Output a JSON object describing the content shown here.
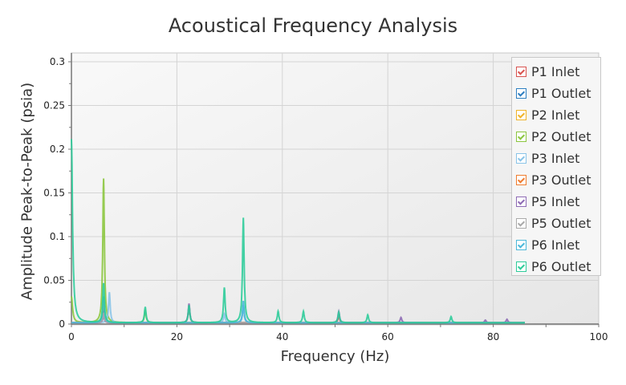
{
  "chart_data": {
    "type": "line",
    "title": "Acoustical Frequency Analysis",
    "xlabel": "Frequency (Hz)",
    "ylabel": "Amplitude Peak-to-Peak (psia)",
    "xlim": [
      0,
      100
    ],
    "ylim": [
      0,
      0.31
    ],
    "x_ticks": [
      0,
      20,
      40,
      60,
      80,
      100
    ],
    "y_ticks": [
      0,
      0.05,
      0.1,
      0.15,
      0.2,
      0.25,
      0.3
    ],
    "grid": true,
    "legend_position": "upper right",
    "series": [
      {
        "name": "P1 Inlet",
        "color": "#d9534f",
        "peaks": [
          [
            6.1,
            0.02
          ],
          [
            22.3,
            0.02
          ],
          [
            50.7,
            0.008
          ]
        ]
      },
      {
        "name": "P1 Outlet",
        "color": "#2e7fc1",
        "peaks": [
          [
            6.1,
            0.02
          ],
          [
            32.6,
            0.02
          ]
        ]
      },
      {
        "name": "P2 Inlet",
        "color": "#f0b429",
        "peaks": [
          [
            6.1,
            0.03
          ]
        ]
      },
      {
        "name": "P2 Outlet",
        "color": "#8cc63f",
        "peaks": [
          [
            0,
            0.03
          ],
          [
            6.1,
            0.165
          ],
          [
            14,
            0.015
          ]
        ]
      },
      {
        "name": "P3 Inlet",
        "color": "#8ac4e8",
        "peaks": [
          [
            7.2,
            0.035
          ],
          [
            29,
            0.01
          ],
          [
            32.6,
            0.02
          ]
        ]
      },
      {
        "name": "P3 Outlet",
        "color": "#ef7d30",
        "peaks": [
          [
            6.1,
            0.01
          ]
        ]
      },
      {
        "name": "P5 Inlet",
        "color": "#8e6bb5",
        "peaks": [
          [
            6.1,
            0.008
          ],
          [
            22.3,
            0.022
          ],
          [
            50.7,
            0.013
          ],
          [
            62.5,
            0.006
          ],
          [
            78.5,
            0.003
          ],
          [
            82.6,
            0.004
          ]
        ]
      },
      {
        "name": "P5 Outlet",
        "color": "#aaaaaa",
        "peaks": [
          [
            6.1,
            0.01
          ]
        ]
      },
      {
        "name": "P6 Inlet",
        "color": "#4bb8d9",
        "peaks": [
          [
            6.1,
            0.03
          ],
          [
            32.6,
            0.025
          ]
        ]
      },
      {
        "name": "P6 Outlet",
        "color": "#2ecc9a",
        "peaks": [
          [
            0,
            0.21
          ],
          [
            6.1,
            0.045
          ],
          [
            14,
            0.018
          ],
          [
            22.3,
            0.02
          ],
          [
            29,
            0.04
          ],
          [
            32.6,
            0.12
          ],
          [
            39.2,
            0.013
          ],
          [
            44,
            0.013
          ],
          [
            50.7,
            0.012
          ],
          [
            56.2,
            0.009
          ],
          [
            72,
            0.007
          ]
        ]
      }
    ]
  },
  "legend": {
    "items": [
      {
        "label": "P1 Inlet",
        "color": "#d9534f",
        "checked": true
      },
      {
        "label": "P1 Outlet",
        "color": "#2e7fc1",
        "checked": true
      },
      {
        "label": "P2 Inlet",
        "color": "#f0b429",
        "checked": true
      },
      {
        "label": "P2 Outlet",
        "color": "#8cc63f",
        "checked": true
      },
      {
        "label": "P3 Inlet",
        "color": "#8ac4e8",
        "checked": true
      },
      {
        "label": "P3 Outlet",
        "color": "#ef7d30",
        "checked": true
      },
      {
        "label": "P5 Inlet",
        "color": "#8e6bb5",
        "checked": true
      },
      {
        "label": "P5 Outlet",
        "color": "#aaaaaa",
        "checked": true
      },
      {
        "label": "P6 Inlet",
        "color": "#4bb8d9",
        "checked": true
      },
      {
        "label": "P6 Outlet",
        "color": "#2ecc9a",
        "checked": true
      }
    ]
  }
}
